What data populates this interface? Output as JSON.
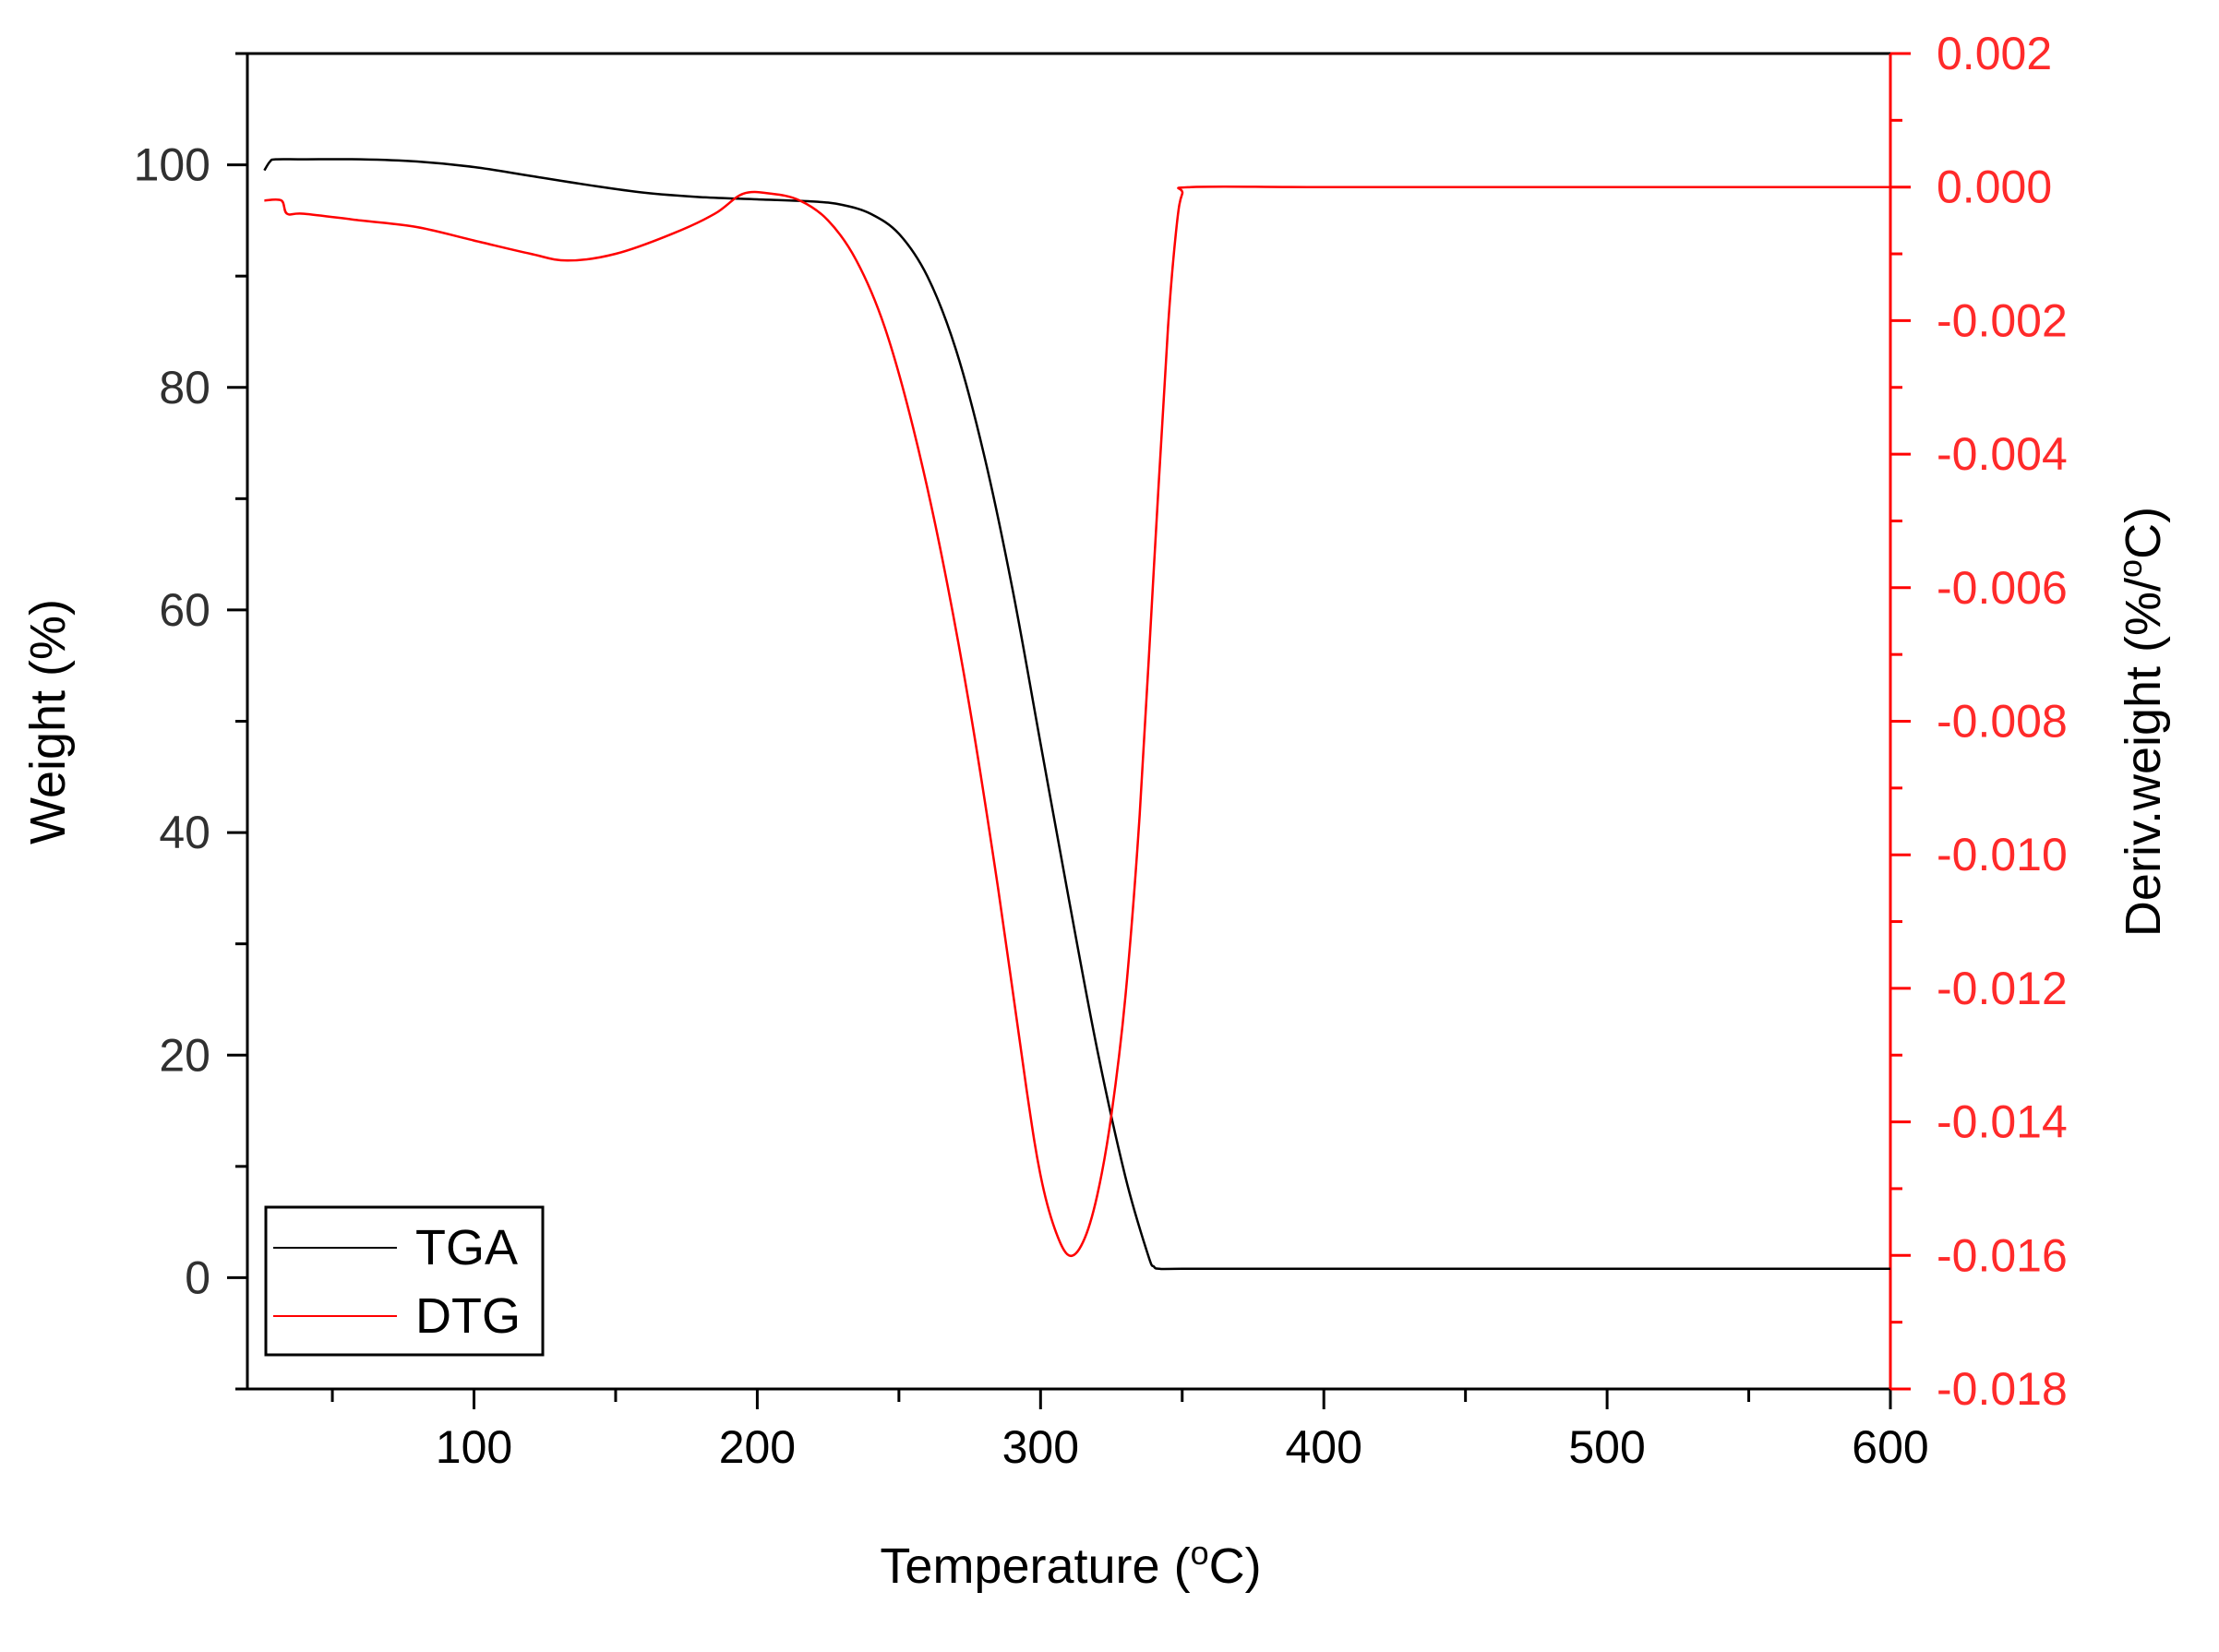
{
  "chart_data": {
    "type": "line",
    "xlabel": "Temperature (",
    "xlabel_sup": "o",
    "xlabel_tail": "C)",
    "ylabel": "Weight (%)",
    "y2label": "Deriv.weight (%/",
    "y2label_sup": "o",
    "y2label_tail": "C)",
    "xlim": [
      20,
      600
    ],
    "ylim": [
      -10,
      110
    ],
    "y2lim": [
      -0.018,
      0.002
    ],
    "x_ticks": [
      100,
      200,
      300,
      400,
      500,
      600
    ],
    "y_ticks": [
      0,
      20,
      40,
      60,
      80,
      100
    ],
    "y2_ticks": [
      "0.002",
      "0.000",
      "-0.002",
      "-0.004",
      "-0.006",
      "-0.008",
      "-0.010",
      "-0.012",
      "-0.014",
      "-0.016",
      "-0.018"
    ],
    "grid": false,
    "legend_position": "bottom-left",
    "colors": {
      "TGA": "#000000",
      "DTG": "#ff0000",
      "right_axis": "#ff0000"
    },
    "series": [
      {
        "name": "TGA",
        "axis": "left",
        "x": [
          26,
          28,
          30,
          40,
          60,
          80,
          100,
          120,
          140,
          160,
          180,
          200,
          220,
          230,
          240,
          250,
          260,
          270,
          280,
          290,
          300,
          310,
          320,
          330,
          338,
          340,
          342,
          350,
          400,
          500,
          600
        ],
        "y": [
          99.5,
          100.3,
          100.5,
          100.5,
          100.5,
          100.3,
          99.8,
          99.0,
          98.2,
          97.5,
          97.1,
          96.9,
          96.7,
          96.4,
          95.6,
          93.8,
          90.0,
          83.5,
          74.0,
          62.0,
          48.0,
          34.0,
          20.5,
          9.0,
          2.0,
          1.0,
          0.8,
          0.8,
          0.8,
          0.8,
          0.8
        ]
      },
      {
        "name": "DTG",
        "axis": "right",
        "x": [
          26,
          32,
          34,
          40,
          60,
          80,
          100,
          120,
          133,
          150,
          170,
          185,
          195,
          205,
          215,
          225,
          235,
          245,
          255,
          265,
          275,
          285,
          295,
          300,
          305,
          310,
          315,
          320,
          325,
          330,
          335,
          340,
          345,
          348,
          350,
          353,
          400,
          500,
          600
        ],
        "y": [
          -0.0002,
          -0.0002,
          -0.0004,
          -0.0004,
          -0.0005,
          -0.0006,
          -0.0008,
          -0.001,
          -0.0011,
          -0.001,
          -0.0007,
          -0.0004,
          -0.0001,
          -0.0001,
          -0.0002,
          -0.0005,
          -0.0011,
          -0.0021,
          -0.0036,
          -0.0055,
          -0.0078,
          -0.0105,
          -0.0135,
          -0.0148,
          -0.0156,
          -0.016,
          -0.0158,
          -0.0151,
          -0.0139,
          -0.0121,
          -0.0094,
          -0.0057,
          -0.0021,
          -0.0006,
          -0.0001,
          0.0,
          0.0,
          0.0,
          0.0
        ]
      }
    ]
  }
}
